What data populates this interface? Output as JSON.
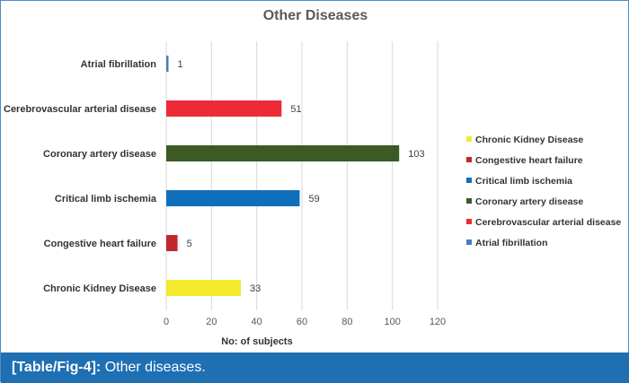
{
  "caption": {
    "label": "[Table/Fig-4]:",
    "text": "Other diseases."
  },
  "chart_data": {
    "type": "bar",
    "orientation": "horizontal",
    "title": "Other Diseases",
    "xlabel": "No: of subjects",
    "ylabel": "",
    "xlim": [
      0,
      120
    ],
    "xticks": [
      0,
      20,
      40,
      60,
      80,
      100,
      120
    ],
    "grid": true,
    "legend_position": "right",
    "categories": [
      "Atrial fibrillation",
      "Cerebrovascular arterial disease",
      "Coronary artery disease",
      "Critical limb ischemia",
      "Congestive heart failure",
      "Chronic Kidney Disease"
    ],
    "values": [
      1,
      51,
      103,
      59,
      5,
      33
    ],
    "colors": [
      "#4a7ebb",
      "#ee2a36",
      "#3c5a23",
      "#0f6fbd",
      "#c1272d",
      "#f2ea2a"
    ],
    "legend": [
      {
        "name": "Chronic Kidney Disease",
        "color": "#f2ea2a"
      },
      {
        "name": "Congestive heart failure",
        "color": "#c1272d"
      },
      {
        "name": "Critical limb ischemia",
        "color": "#0f6fbd"
      },
      {
        "name": "Coronary artery disease",
        "color": "#3c5a23"
      },
      {
        "name": "Cerebrovascular arterial disease",
        "color": "#ee2a36"
      },
      {
        "name": "Atrial fibrillation",
        "color": "#4a7ebb"
      }
    ]
  }
}
